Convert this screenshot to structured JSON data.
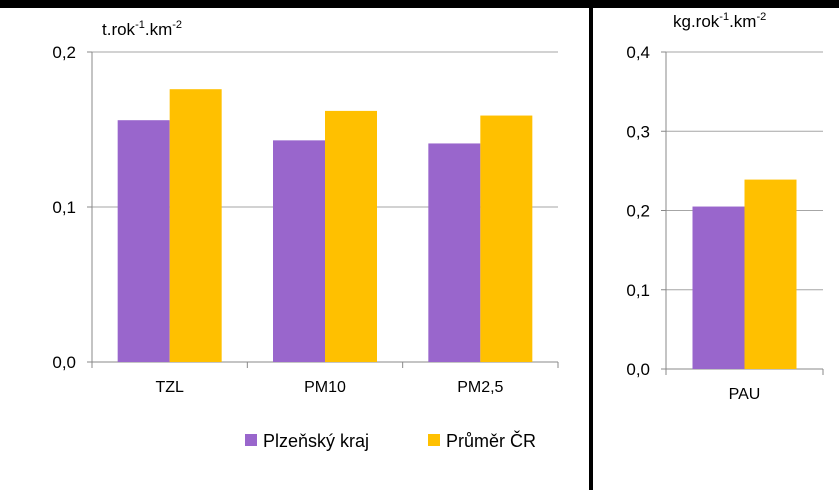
{
  "chart_data": [
    {
      "type": "bar",
      "unit_label": "t.rok",
      "unit_sup1": "-1",
      "unit_mid": ".km",
      "unit_sup2": "-2",
      "categories": [
        "TZL",
        "PM10",
        "PM2,5"
      ],
      "series": [
        {
          "name": "Plzeňský kraj",
          "color": "#9966CC",
          "values": [
            0.156,
            0.143,
            0.141
          ]
        },
        {
          "name": "Průměr ČR",
          "color": "#FFC000",
          "values": [
            0.176,
            0.162,
            0.159
          ]
        }
      ],
      "ylim": [
        0,
        0.2
      ],
      "yticks": [
        "0,0",
        "0,1",
        "0,2"
      ],
      "grid": true,
      "legend": "bottom"
    },
    {
      "type": "bar",
      "unit_label": "kg.rok",
      "unit_sup1": "-1",
      "unit_mid": ".km",
      "unit_sup2": "-2",
      "categories": [
        "PAU"
      ],
      "series": [
        {
          "name": "Plzeňský kraj",
          "color": "#9966CC",
          "values": [
            0.205
          ]
        },
        {
          "name": "Průměr ČR",
          "color": "#FFC000",
          "values": [
            0.239
          ]
        }
      ],
      "ylim": [
        0,
        0.4
      ],
      "yticks": [
        "0,0",
        "0,1",
        "0,2",
        "0,3",
        "0,4"
      ],
      "grid": true,
      "legend": "none"
    }
  ],
  "legend": {
    "items": [
      {
        "label": "Plzeňský kraj",
        "color": "#9966CC"
      },
      {
        "label": "Průměr ČR",
        "color": "#FFC000"
      }
    ]
  }
}
